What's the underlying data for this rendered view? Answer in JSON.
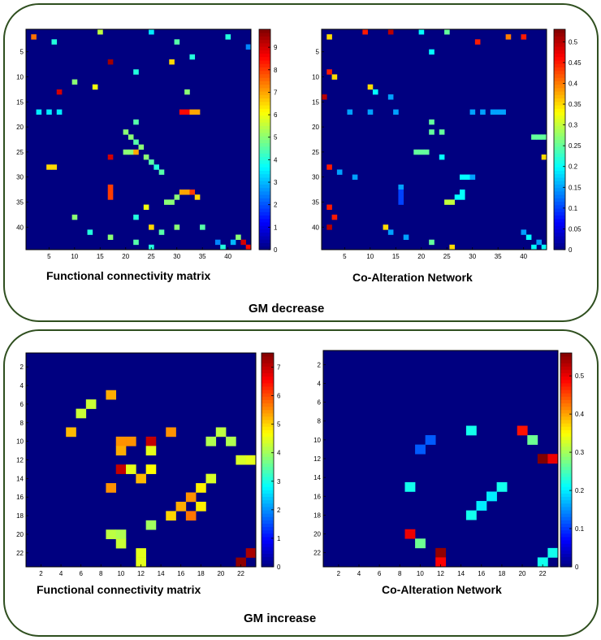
{
  "panels": [
    {
      "title": "GM decrease"
    },
    {
      "title": "GM increase"
    }
  ],
  "chart_data": [
    {
      "type": "heatmap",
      "title": "Functional connectivity matrix",
      "n": 44,
      "x_ticks": [
        5,
        10,
        15,
        20,
        25,
        30,
        35,
        40
      ],
      "y_ticks": [
        5,
        10,
        15,
        20,
        25,
        30,
        35,
        40
      ],
      "colorbar_ticks": [
        0,
        1,
        2,
        3,
        4,
        5,
        6,
        7,
        8,
        9
      ],
      "vmax": 9.8,
      "background_value": 0,
      "cells": [
        [
          2,
          2,
          7.5
        ],
        [
          1,
          15,
          5.5
        ],
        [
          3,
          6,
          4
        ],
        [
          1,
          25,
          3.5
        ],
        [
          3,
          30,
          4.5
        ],
        [
          2,
          40,
          4
        ],
        [
          4,
          44,
          2.5
        ],
        [
          7,
          17,
          9.5
        ],
        [
          7,
          29,
          6.5
        ],
        [
          6,
          33,
          4
        ],
        [
          9,
          22,
          4
        ],
        [
          11,
          10,
          5
        ],
        [
          13,
          7,
          9
        ],
        [
          12,
          14,
          6
        ],
        [
          13,
          32,
          5
        ],
        [
          17,
          3,
          3.5
        ],
        [
          17,
          5,
          3.5
        ],
        [
          17,
          7,
          3.5
        ],
        [
          17,
          31,
          8.5
        ],
        [
          17,
          32,
          8.5
        ],
        [
          17,
          33,
          7
        ],
        [
          17,
          34,
          7
        ],
        [
          19,
          22,
          4.5
        ],
        [
          21,
          20,
          5
        ],
        [
          22,
          21,
          5
        ],
        [
          23,
          22,
          4.5
        ],
        [
          24,
          23,
          5
        ],
        [
          25,
          20,
          5
        ],
        [
          25,
          21,
          5
        ],
        [
          25,
          22,
          7
        ],
        [
          26,
          17,
          9
        ],
        [
          26,
          24,
          5
        ],
        [
          27,
          25,
          4.5
        ],
        [
          28,
          26,
          4
        ],
        [
          29,
          27,
          4.5
        ],
        [
          28,
          5,
          6.5
        ],
        [
          28,
          6,
          6.5
        ],
        [
          32,
          17,
          8
        ],
        [
          33,
          17,
          8
        ],
        [
          34,
          17,
          8
        ],
        [
          33,
          31,
          7
        ],
        [
          33,
          32,
          7
        ],
        [
          33,
          33,
          8
        ],
        [
          34,
          34,
          6.5
        ],
        [
          35,
          28,
          5
        ],
        [
          35,
          29,
          5
        ],
        [
          34,
          30,
          5
        ],
        [
          36,
          24,
          6
        ],
        [
          38,
          10,
          5
        ],
        [
          38,
          22,
          4
        ],
        [
          40,
          25,
          6.5
        ],
        [
          41,
          27,
          4.5
        ],
        [
          40,
          30,
          5
        ],
        [
          40,
          35,
          4.5
        ],
        [
          43,
          38,
          2.5
        ],
        [
          43,
          41,
          3
        ],
        [
          43,
          43,
          9
        ],
        [
          44,
          44,
          8.5
        ],
        [
          44,
          39,
          4
        ],
        [
          42,
          42,
          5
        ],
        [
          41,
          13,
          4
        ],
        [
          42,
          17,
          5
        ],
        [
          43,
          22,
          4.5
        ],
        [
          44,
          25,
          4
        ]
      ]
    },
    {
      "type": "heatmap",
      "title": "Co-Alteration Network",
      "n": 44,
      "x_ticks": [
        5,
        10,
        15,
        20,
        25,
        30,
        35,
        40
      ],
      "y_ticks": [
        5,
        10,
        15,
        20,
        25,
        30,
        35,
        40
      ],
      "colorbar_ticks": [
        0,
        0.05,
        0.1,
        0.15,
        0.2,
        0.25,
        0.3,
        0.35,
        0.4,
        0.45,
        0.5
      ],
      "vmax": 0.53,
      "background_value": 0,
      "cells": [
        [
          2,
          2,
          0.35
        ],
        [
          1,
          9,
          0.45
        ],
        [
          1,
          14,
          0.5
        ],
        [
          1,
          20,
          0.2
        ],
        [
          1,
          25,
          0.25
        ],
        [
          3,
          31,
          0.45
        ],
        [
          2,
          37,
          0.4
        ],
        [
          2,
          40,
          0.45
        ],
        [
          5,
          22,
          0.2
        ],
        [
          9,
          2,
          0.45
        ],
        [
          10,
          3,
          0.35
        ],
        [
          12,
          10,
          0.35
        ],
        [
          13,
          11,
          0.2
        ],
        [
          14,
          14,
          0.15
        ],
        [
          14,
          1,
          0.5
        ],
        [
          17,
          6,
          0.15
        ],
        [
          17,
          10,
          0.15
        ],
        [
          17,
          15,
          0.15
        ],
        [
          17,
          30,
          0.15
        ],
        [
          17,
          32,
          0.15
        ],
        [
          17,
          34,
          0.15
        ],
        [
          17,
          35,
          0.15
        ],
        [
          17,
          36,
          0.15
        ],
        [
          19,
          22,
          0.25
        ],
        [
          21,
          22,
          0.25
        ],
        [
          21,
          24,
          0.25
        ],
        [
          22,
          42,
          0.25
        ],
        [
          22,
          43,
          0.25
        ],
        [
          22,
          44,
          0.25
        ],
        [
          25,
          19,
          0.25
        ],
        [
          25,
          20,
          0.25
        ],
        [
          25,
          21,
          0.25
        ],
        [
          26,
          24,
          0.2
        ],
        [
          26,
          44,
          0.35
        ],
        [
          28,
          2,
          0.45
        ],
        [
          29,
          4,
          0.15
        ],
        [
          30,
          7,
          0.15
        ],
        [
          30,
          28,
          0.2
        ],
        [
          30,
          29,
          0.2
        ],
        [
          30,
          30,
          0.15
        ],
        [
          32,
          16,
          0.15
        ],
        [
          33,
          16,
          0.1
        ],
        [
          34,
          16,
          0.1
        ],
        [
          35,
          16,
          0.1
        ],
        [
          33,
          28,
          0.2
        ],
        [
          34,
          28,
          0.2
        ],
        [
          35,
          25,
          0.3
        ],
        [
          35,
          26,
          0.3
        ],
        [
          34,
          27,
          0.2
        ],
        [
          36,
          2,
          0.45
        ],
        [
          38,
          3,
          0.45
        ],
        [
          40,
          2,
          0.5
        ],
        [
          40,
          13,
          0.35
        ],
        [
          41,
          14,
          0.15
        ],
        [
          42,
          17,
          0.15
        ],
        [
          43,
          22,
          0.25
        ],
        [
          44,
          26,
          0.35
        ],
        [
          44,
          42,
          0.2
        ],
        [
          43,
          43,
          0.15
        ],
        [
          42,
          41,
          0.2
        ],
        [
          41,
          40,
          0.15
        ],
        [
          44,
          44,
          0.2
        ]
      ]
    },
    {
      "type": "heatmap",
      "title": "Functional connectivity matrix",
      "n": 23,
      "x_ticks": [
        2,
        4,
        6,
        8,
        10,
        12,
        14,
        16,
        18,
        20,
        22
      ],
      "y_ticks": [
        2,
        4,
        6,
        8,
        10,
        12,
        14,
        16,
        18,
        20,
        22
      ],
      "colorbar_ticks": [
        0,
        1,
        2,
        3,
        4,
        5,
        6,
        7
      ],
      "vmax": 7.5,
      "background_value": 0,
      "cells": [
        [
          5,
          9,
          5.3
        ],
        [
          6,
          7,
          4.3
        ],
        [
          7,
          6,
          4.3
        ],
        [
          9,
          5,
          5.2
        ],
        [
          9,
          15,
          5.5
        ],
        [
          9,
          20,
          4.2
        ],
        [
          10,
          10,
          5.5
        ],
        [
          10,
          11,
          5.5
        ],
        [
          10,
          13,
          7
        ],
        [
          10,
          19,
          4.1
        ],
        [
          10,
          21,
          4.1
        ],
        [
          11,
          10,
          5.3
        ],
        [
          11,
          13,
          4.5
        ],
        [
          12,
          22,
          4.4
        ],
        [
          12,
          23,
          4.5
        ],
        [
          13,
          10,
          7
        ],
        [
          13,
          11,
          4.5
        ],
        [
          13,
          13,
          4.7
        ],
        [
          14,
          12,
          5.2
        ],
        [
          14,
          19,
          4.4
        ],
        [
          15,
          9,
          5.5
        ],
        [
          15,
          18,
          4.8
        ],
        [
          16,
          17,
          5.5
        ],
        [
          17,
          16,
          5.3
        ],
        [
          17,
          18,
          4.8
        ],
        [
          18,
          15,
          5
        ],
        [
          18,
          17,
          5.7
        ],
        [
          19,
          13,
          4
        ],
        [
          20,
          9,
          4.2
        ],
        [
          20,
          10,
          4.1
        ],
        [
          21,
          10,
          4.3
        ],
        [
          22,
          12,
          4.5
        ],
        [
          23,
          12,
          4.5
        ],
        [
          22,
          23,
          7.2
        ],
        [
          23,
          22,
          7.4
        ]
      ]
    },
    {
      "type": "heatmap",
      "title": "Co-Alteration Network",
      "n": 23,
      "x_ticks": [
        2,
        4,
        6,
        8,
        10,
        12,
        14,
        16,
        18,
        20,
        22
      ],
      "y_ticks": [
        2,
        4,
        6,
        8,
        10,
        12,
        14,
        16,
        18,
        20,
        22
      ],
      "colorbar_ticks": [
        0,
        0.1,
        0.2,
        0.3,
        0.4,
        0.5
      ],
      "vmax": 0.56,
      "background_value": 0,
      "cells": [
        [
          9,
          15,
          0.22
        ],
        [
          9,
          20,
          0.48
        ],
        [
          10,
          11,
          0.12
        ],
        [
          10,
          21,
          0.27
        ],
        [
          11,
          10,
          0.12
        ],
        [
          12,
          22,
          0.56
        ],
        [
          12,
          23,
          0.5
        ],
        [
          15,
          9,
          0.22
        ],
        [
          15,
          18,
          0.22
        ],
        [
          16,
          17,
          0.2
        ],
        [
          17,
          16,
          0.2
        ],
        [
          18,
          15,
          0.22
        ],
        [
          20,
          9,
          0.5
        ],
        [
          21,
          10,
          0.27
        ],
        [
          22,
          12,
          0.55
        ],
        [
          23,
          12,
          0.49
        ],
        [
          22,
          23,
          0.22
        ],
        [
          23,
          22,
          0.22
        ]
      ]
    }
  ]
}
